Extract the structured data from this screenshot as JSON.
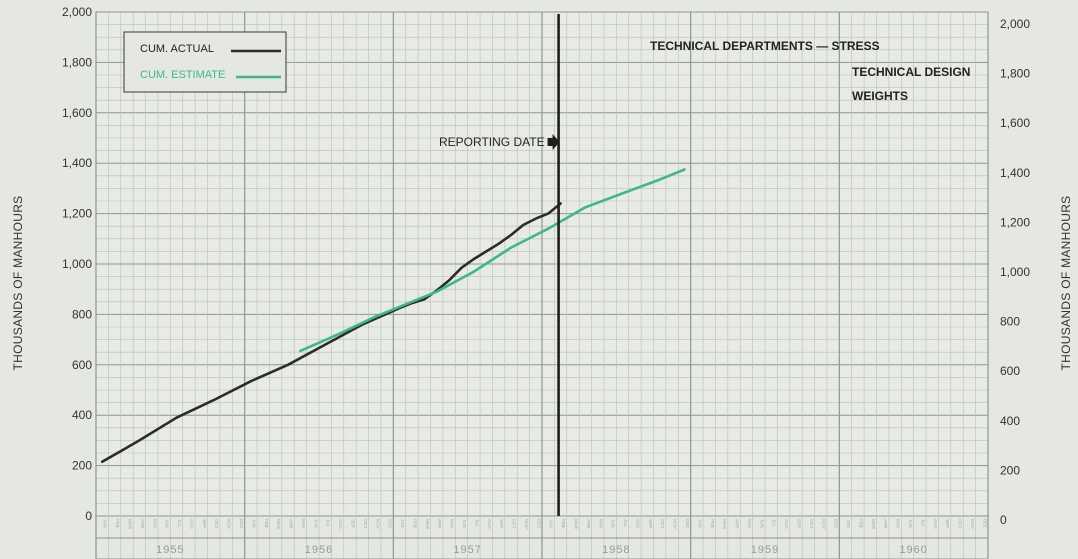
{
  "chart_data": {
    "type": "line",
    "title": "TECHNICAL DEPARTMENTS — STRESS",
    "subtitle_lines": [
      "TECHNICAL DESIGN",
      "WEIGHTS"
    ],
    "ylabel_left": "THOUSANDS OF MANHOURS",
    "ylabel_right": "THOUSANDS OF MANHOURS",
    "ylim_left": [
      0,
      2000
    ],
    "ylim_right": [
      0,
      2000
    ],
    "yticks_left": [
      0,
      200,
      400,
      600,
      800,
      1000,
      1200,
      1400,
      1600,
      1800,
      2000
    ],
    "yticks_left_labels": [
      "0",
      "200",
      "400",
      "600",
      "800",
      "1,000",
      "1,200",
      "1,400",
      "1,600",
      "1,800",
      "2,000"
    ],
    "yticks_right": [
      0,
      200,
      400,
      600,
      800,
      1000,
      1200,
      1400,
      1600,
      1800,
      2000
    ],
    "yticks_right_labels": [
      "0",
      "200",
      "400",
      "600",
      "800",
      "1,000",
      "1,200",
      "1,400",
      "1,600",
      "1,800",
      "2,000"
    ],
    "xlim": [
      "1955-01",
      "1960-12"
    ],
    "years": [
      "1955",
      "1956",
      "1957",
      "1958",
      "1959",
      "1960"
    ],
    "months": [
      "JAN",
      "FEB",
      "MAR",
      "APR",
      "MAY",
      "JUN",
      "JUL",
      "AUG",
      "SEP",
      "OCT",
      "NOV",
      "DEC"
    ],
    "grid": true,
    "legend_position": "top-left",
    "reporting_date": {
      "label": "REPORTING DATE",
      "date": "1958-02"
    },
    "series": [
      {
        "name": "CUM. ACTUAL",
        "color": "#2b2b2b",
        "points": [
          [
            "1955-01",
            215
          ],
          [
            "1955-04",
            300
          ],
          [
            "1955-07",
            390
          ],
          [
            "1955-10",
            460
          ],
          [
            "1956-01",
            535
          ],
          [
            "1956-04",
            600
          ],
          [
            "1956-07",
            680
          ],
          [
            "1956-10",
            760
          ],
          [
            "1957-01",
            825
          ],
          [
            "1957-02",
            845
          ],
          [
            "1957-03",
            860
          ],
          [
            "1957-04",
            895
          ],
          [
            "1957-05",
            935
          ],
          [
            "1957-06",
            985
          ],
          [
            "1957-07",
            1020
          ],
          [
            "1957-08",
            1050
          ],
          [
            "1957-09",
            1080
          ],
          [
            "1957-10",
            1115
          ],
          [
            "1957-11",
            1155
          ],
          [
            "1957-12",
            1180
          ],
          [
            "1958-01",
            1200
          ],
          [
            "1958-02",
            1240
          ]
        ]
      },
      {
        "name": "CUM. ESTIMATE",
        "color": "#3db886",
        "points": [
          [
            "1956-05",
            655
          ],
          [
            "1956-08",
            720
          ],
          [
            "1956-11",
            790
          ],
          [
            "1957-02",
            850
          ],
          [
            "1957-04",
            890
          ],
          [
            "1957-07",
            970
          ],
          [
            "1957-10",
            1065
          ],
          [
            "1958-01",
            1140
          ],
          [
            "1958-04",
            1225
          ],
          [
            "1958-07",
            1280
          ],
          [
            "1958-10",
            1335
          ],
          [
            "1958-12",
            1375
          ]
        ]
      }
    ]
  }
}
